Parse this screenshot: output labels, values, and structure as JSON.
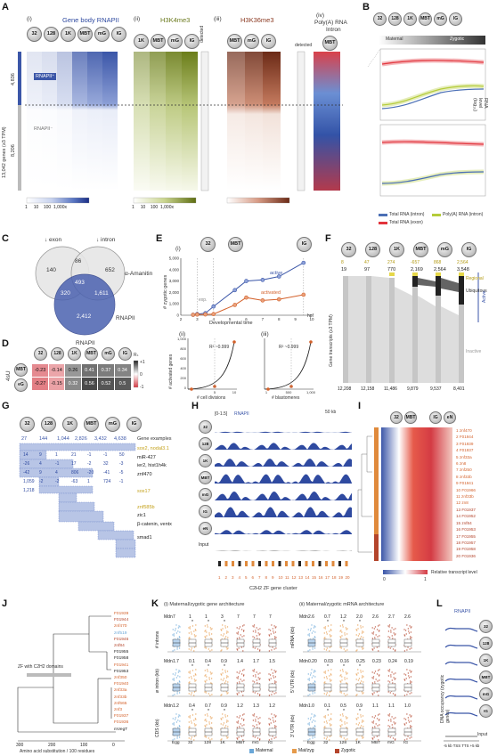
{
  "panelA": {
    "label": "A",
    "sub_i": "(i)",
    "sub_ii": "(ii)",
    "sub_iii": "(iii)",
    "sub_iv": "(iv)",
    "title_i": "Gene body RNAPII",
    "title_ii": "H3K4me3",
    "title_iii": "H3K36me3",
    "title_iv": "Poly(A) RNA",
    "intron": "Intron",
    "stages": [
      "32",
      "128",
      "1K",
      "MBT",
      "mG",
      "IG"
    ],
    "stage_mbt": "MBT",
    "detected": "detected",
    "ylabel": "13,042 genes (≥3 TPM)",
    "count_top": "4,836",
    "count_bottom": "8,206",
    "rnapii_plus": "RNAPII⁺",
    "rnapii_minus": "RNAPII⁻",
    "scale_ticks": [
      "1",
      "10",
      "100",
      "1,000x"
    ]
  },
  "panelB": {
    "label": "B",
    "stages": [
      "32",
      "128",
      "1K",
      "MBT",
      "mG",
      "IG"
    ],
    "maternal": "Maternal",
    "zygotic": "Zygotic",
    "ylabel": "RNA level (log₁₀)",
    "y_ticks": [
      "2",
      "1",
      "0",
      "-1",
      "-2",
      "-3"
    ],
    "legend": [
      "Total RNA (intron)",
      "Poly(A) RNA (intron)",
      "Total RNA (exon)"
    ],
    "colors": {
      "intron": "#4b6fb5",
      "polya": "#b5cc3a",
      "exon": "#e2343c"
    }
  },
  "panelC": {
    "label": "C",
    "exon": "↓ exon",
    "intron": "↓ intron",
    "amanitin": "α-Amanitin",
    "rnapii": "RNAPII",
    "values": [
      "140",
      "86",
      "652",
      "493",
      "320",
      "1,611",
      "2,412"
    ]
  },
  "panelD": {
    "label": "D",
    "title": "RNAPII",
    "side": "4sU",
    "cols": [
      "32",
      "128",
      "1K",
      "MBT",
      "mG",
      "IG"
    ],
    "rows": [
      {
        "stage": "MBT",
        "values": [
          "-0.23",
          "-0.14",
          "0.26",
          "0.41",
          "0.37",
          "0.34"
        ]
      },
      {
        "stage": "eG",
        "values": [
          "-0.27",
          "-0.15",
          "0.32",
          "0.56",
          "0.52",
          "0.5"
        ]
      }
    ],
    "legend_title": "Rₛ",
    "legend_ticks": [
      "+1",
      "0",
      "-1"
    ]
  },
  "panelE": {
    "label": "E",
    "sub_i": "(i)",
    "sub_ii": "(ii)",
    "sub_iii": "(iii)",
    "stages_top": [
      "32",
      "MBT",
      "IG"
    ],
    "ylabel": "# zygotic genes",
    "xlabel": "Developmental time",
    "hpf": "hpf",
    "active": "active",
    "activated": "activated",
    "exp": "exp.",
    "y_ticks": [
      "5,000",
      "4,000",
      "3,000",
      "2,000",
      "1,000",
      "0"
    ],
    "x_ticks": [
      "2",
      "3",
      "4",
      "5",
      "6",
      "7",
      "8",
      "9",
      "10"
    ],
    "r2": "R² ~0.999",
    "act_genes": "# activated genes",
    "y2_ticks": [
      "1,000",
      "800",
      "600",
      "400",
      "200",
      "0"
    ],
    "x_cells": [
      "5",
      "10"
    ],
    "xl_cells": "# cell divisions",
    "x_blast": [
      "1",
      "500",
      "1,000"
    ],
    "xl_blast": "# blastomeres",
    "stages_ii": [
      "32",
      "1K"
    ],
    "stages_iii": [
      "32",
      "1K"
    ],
    "chart_data": {
      "type": "line",
      "x": [
        2.75,
        3,
        3.5,
        4,
        5.3,
        6,
        7,
        8,
        9.5
      ],
      "series": [
        {
          "name": "active",
          "values": [
            40,
            100,
            180,
            770,
            2200,
            3000,
            3100,
            3400,
            4600
          ]
        },
        {
          "name": "activated",
          "values": [
            40,
            60,
            70,
            100,
            900,
            1550,
            1300,
            1400,
            1800
          ]
        }
      ]
    }
  },
  "panelF": {
    "label": "F",
    "stages": [
      "32",
      "128",
      "1K",
      "MBT",
      "mG",
      "IG"
    ],
    "top_changes": [
      "8",
      "47",
      "274",
      "-657",
      "868",
      "2,564",
      "1,090"
    ],
    "totals": [
      "19",
      "97",
      "770",
      "2,169",
      "2,564",
      "3,548"
    ],
    "regional": "Regional",
    "ubiquitous": "Ubiquitous",
    "inactive": "Inactive",
    "active": "Active",
    "ylabel": "Gene transcripts (≥3 TPM)",
    "bottom": [
      "12,208",
      "12,158",
      "11,486",
      "9,879",
      "9,537",
      "8,401"
    ]
  },
  "panelG": {
    "label": "G",
    "stages": [
      "32",
      "128",
      "1K",
      "MBT",
      "mG",
      "IG"
    ],
    "counts": [
      "27",
      "144",
      "1,044",
      "2,826",
      "3,432",
      "4,638"
    ],
    "examples_title": "Gene examples",
    "examples": [
      "sox2, nodal3.1",
      "miR-427",
      "ier2, hist1h4k",
      "znf470",
      "sox17",
      "znf585b",
      "zic1",
      "β-catenin, ventx",
      "smad1"
    ],
    "block_values": [
      "14",
      "9",
      "1",
      "21",
      "-1",
      "-1",
      "50",
      "-26",
      "4",
      "-1",
      "17",
      "-2",
      "32",
      "-3",
      "-42",
      "9",
      "4",
      "806",
      "-20",
      "-41",
      "-5",
      "1,059",
      "-2",
      "-2",
      "-63",
      "1",
      "724",
      "-1",
      "1,218"
    ]
  },
  "panelH": {
    "label": "H",
    "range": "[0-1.5]",
    "title": "RNAPII",
    "scale": "50 kb",
    "tracks": [
      "32",
      "128",
      "1K",
      "MBT",
      "mG",
      "IG",
      "eN",
      "Input"
    ],
    "cluster": "C2H2 ZF gene cluster",
    "gene_numbers": [
      "1",
      "2",
      "3",
      "4",
      "5",
      "6",
      "7",
      "8",
      "9",
      "10",
      "11",
      "12",
      "13",
      "14",
      "15",
      "16",
      "17",
      "18",
      "19",
      "20"
    ]
  },
  "panelI": {
    "label": "I",
    "stages": [
      "32",
      "MBT",
      "IG",
      "eN"
    ],
    "genes": [
      "znf470",
      "F01944",
      "F01939",
      "F01937",
      "znf33a",
      "zn8",
      "znf250",
      "znf33b",
      "F01941",
      "F01966",
      "znf33b",
      "zn8",
      "F01937",
      "F01952",
      "znf84",
      "F01953",
      "F01955",
      "F01957",
      "F01958",
      "F01936"
    ],
    "legend": "Relative transcript level",
    "legend_ticks": [
      "0",
      "1"
    ]
  },
  "panelJ": {
    "label": "J",
    "zf_label": "ZF with C2H2 domains",
    "genes": [
      "F01939",
      "F01944",
      "znf470",
      "znf519",
      "F01946",
      "znf84",
      "F01955",
      "F01958",
      "F01941",
      "F01953",
      "znf350",
      "F01940",
      "znf33a",
      "znf33b",
      "znf665",
      "znf3",
      "F01937",
      "F01936",
      "mVegT"
    ],
    "x_ticks": [
      "300",
      "200",
      "100",
      "0"
    ],
    "xlabel": "Amino acid substitution / 100 residues"
  },
  "panelK": {
    "label": "K",
    "title_i": "(i)  Maternal/zygotic gene architecture",
    "title_ii": "(ii)  Maternal/zygotic mRNA architecture",
    "stages": [
      "Egg",
      "32",
      "128",
      "1K",
      "MBT",
      "mG",
      "IG"
    ],
    "mdn": "Mdn",
    "rows_i": [
      {
        "ylabel": "# introns",
        "mdn": [
          "7",
          "1",
          "1",
          "3",
          "7",
          "7",
          "7"
        ]
      },
      {
        "ylabel": "ø intron (kb)",
        "mdn": [
          "1.7",
          "0.1",
          "0.4",
          "0.9",
          "1.4",
          "1.7",
          "1.5"
        ]
      },
      {
        "ylabel": "CDS (kb)",
        "mdn": [
          "1.2",
          "0.4",
          "0.7",
          "0.9",
          "1.2",
          "1.3",
          "1.2"
        ]
      }
    ],
    "rows_ii": [
      {
        "ylabel": "mRNA (kb)",
        "mdn": [
          "2.6",
          "0.7",
          "1.2",
          "2.0",
          "2.6",
          "2.7",
          "2.6"
        ]
      },
      {
        "ylabel": "5′ UTR (kb)",
        "mdn": [
          "0.20",
          "0.03",
          "0.16",
          "0.25",
          "0.23",
          "0.24",
          "0.19"
        ]
      },
      {
        "ylabel": "3′ UTR (kb)",
        "mdn": [
          "1.0",
          "0.1",
          "0.5",
          "0.9",
          "1.1",
          "1.1",
          "1.0"
        ]
      }
    ],
    "legend": [
      "Maternal",
      "Mat/zyg",
      "Zygotic"
    ],
    "colors": {
      "maternal": "#6aa7d8",
      "matzyg": "#e69a4a",
      "zygotic": "#b4452c"
    }
  },
  "panelL": {
    "label": "L",
    "title": "RNAPII",
    "tracks": [
      "32",
      "128",
      "1K",
      "MBT",
      "mG",
      "IG"
    ],
    "input": "Input",
    "ylabel": "DNA occupancy (zygotic genes)",
    "x_ticks": [
      "-5 kb",
      "TSS",
      "TTS",
      "+5 kb"
    ]
  }
}
